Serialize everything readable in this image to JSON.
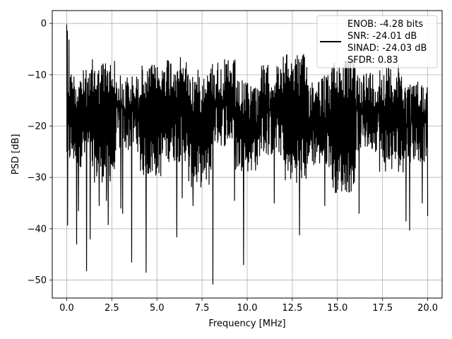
{
  "chart_data": {
    "type": "line",
    "title": "",
    "xlabel": "Frequency [MHz]",
    "ylabel": "PSD [dB]",
    "xlim": [
      -0.8,
      20.8
    ],
    "ylim": [
      -53.5,
      2.5
    ],
    "xticks": [
      0.0,
      2.5,
      5.0,
      7.5,
      10.0,
      12.5,
      15.0,
      17.5,
      20.0
    ],
    "xtick_labels": [
      "0.0",
      "2.5",
      "5.0",
      "7.5",
      "10.0",
      "12.5",
      "15.0",
      "17.5",
      "20.0"
    ],
    "yticks": [
      0,
      -10,
      -20,
      -30,
      -40,
      -50
    ],
    "ytick_labels": [
      "0",
      "−10",
      "−20",
      "−30",
      "−40",
      "−50"
    ],
    "grid": true,
    "legend_position": "top-right",
    "series": [
      {
        "color": "#000000",
        "legend_lines": [
          "ENOB: -4.28 bits",
          "SNR: -24.01 dB",
          "SINAD: -24.03 dB",
          "SFDR: 0.83"
        ],
        "x_start": 0.0,
        "x_end": 20.0,
        "band_lower_pattern": [
          -28,
          -31,
          -25,
          -30,
          -27,
          -32,
          -24,
          -29,
          -26,
          -31,
          -28,
          -33,
          -25,
          -29,
          -27,
          -30
        ],
        "band_upper_pattern": [
          -9,
          -7,
          -10,
          -8,
          -6,
          -9,
          -7,
          -11,
          -8,
          -6,
          -10,
          -7,
          -9,
          -8,
          -11,
          -7
        ],
        "peaks": [
          {
            "x": 0.0,
            "y": -0.2
          },
          {
            "x": 0.04,
            "y": -1.5
          },
          {
            "x": 0.08,
            "y": -13.5
          },
          {
            "x": 0.12,
            "y": -3.2
          },
          {
            "x": 0.2,
            "y": -10.5
          }
        ],
        "dips": [
          {
            "x": 0.05,
            "y": -39.3
          },
          {
            "x": 0.55,
            "y": -43.0
          },
          {
            "x": 0.65,
            "y": -36.5
          },
          {
            "x": 1.1,
            "y": -48.2
          },
          {
            "x": 1.3,
            "y": -42.0
          },
          {
            "x": 1.8,
            "y": -35.5
          },
          {
            "x": 2.2,
            "y": -34.5
          },
          {
            "x": 2.3,
            "y": -39.2
          },
          {
            "x": 3.0,
            "y": -36.0
          },
          {
            "x": 3.1,
            "y": -37.0
          },
          {
            "x": 3.6,
            "y": -46.5
          },
          {
            "x": 4.4,
            "y": -48.5
          },
          {
            "x": 6.1,
            "y": -41.6
          },
          {
            "x": 6.4,
            "y": -34.0
          },
          {
            "x": 7.0,
            "y": -35.5
          },
          {
            "x": 8.1,
            "y": -50.8
          },
          {
            "x": 9.3,
            "y": -34.5
          },
          {
            "x": 9.8,
            "y": -47.0
          },
          {
            "x": 11.5,
            "y": -35.0
          },
          {
            "x": 12.9,
            "y": -41.2
          },
          {
            "x": 14.3,
            "y": -35.5
          },
          {
            "x": 16.2,
            "y": -37.0
          },
          {
            "x": 18.8,
            "y": -38.5
          },
          {
            "x": 19.0,
            "y": -40.3
          },
          {
            "x": 19.7,
            "y": -35.0
          },
          {
            "x": 20.0,
            "y": -37.5
          }
        ]
      }
    ]
  }
}
